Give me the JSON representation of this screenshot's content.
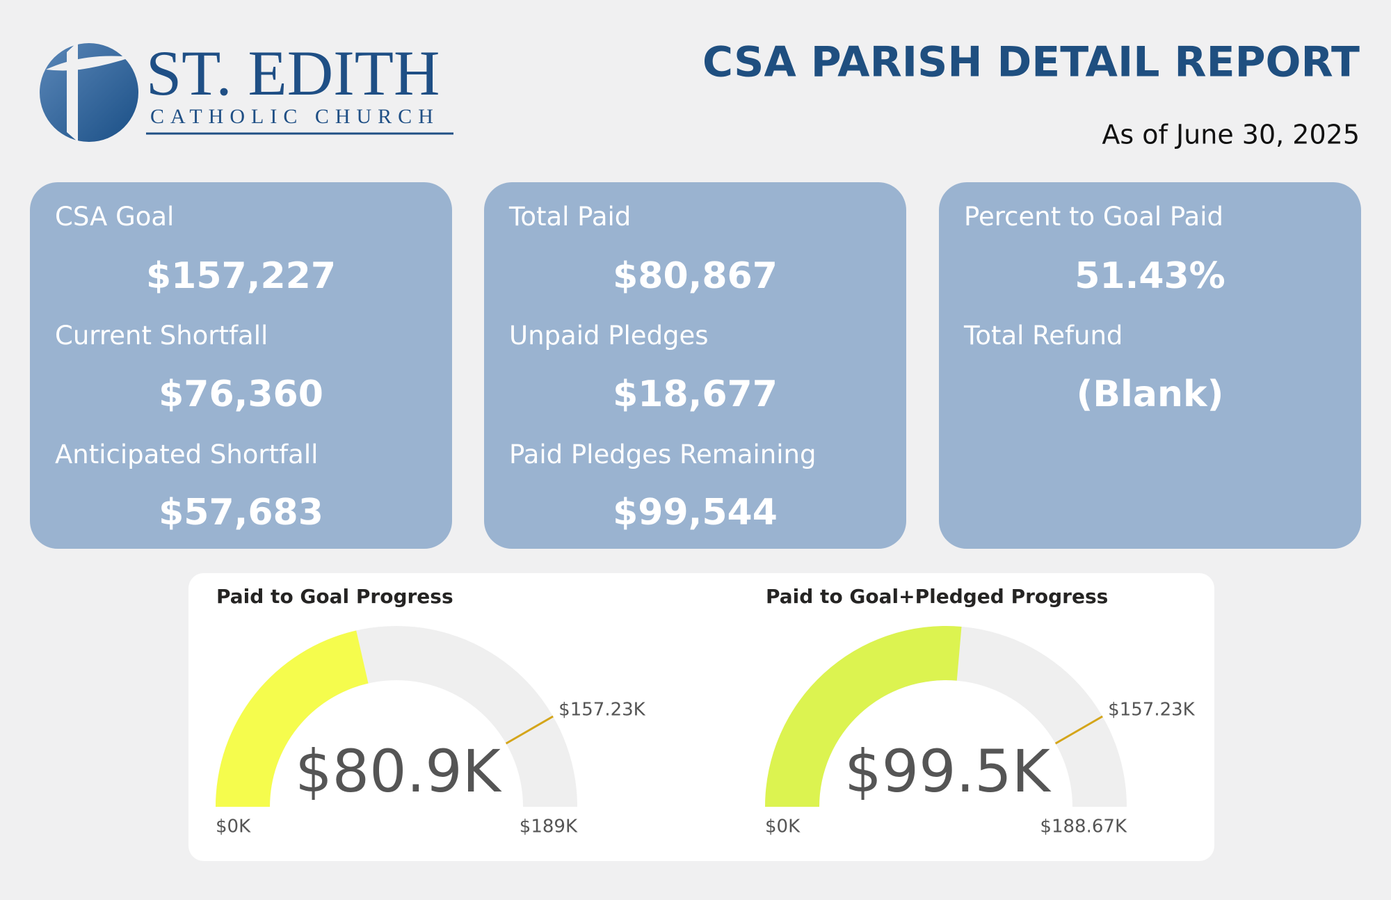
{
  "header": {
    "logo_name": "ST. EDITH",
    "logo_subtitle": "CATHOLIC CHURCH",
    "title": "CSA PARISH DETAIL REPORT",
    "date": "As of June 30, 2025"
  },
  "cards": [
    {
      "items": [
        {
          "label": "CSA Goal",
          "value": "$157,227"
        },
        {
          "label": "Current Shortfall",
          "value": "$76,360"
        },
        {
          "label": "Anticipated Shortfall",
          "value": "$57,683"
        }
      ]
    },
    {
      "items": [
        {
          "label": "Total Paid",
          "value": "$80,867"
        },
        {
          "label": "Unpaid Pledges",
          "value": "$18,677"
        },
        {
          "label": "Paid Pledges Remaining",
          "value": "$99,544"
        }
      ]
    },
    {
      "items": [
        {
          "label": "Percent to Goal Paid",
          "value": "51.43%"
        },
        {
          "label": "Total Refund",
          "value": "(Blank)"
        }
      ]
    }
  ],
  "chart_data": [
    {
      "type": "gauge",
      "title": "Paid to Goal Progress",
      "value": 80867,
      "value_label": "$80.9K",
      "target": 157227,
      "target_label": "$157.23K",
      "ylim": [
        0,
        188672
      ],
      "yticks": [
        {
          "value": 0,
          "label": "$0K"
        },
        {
          "value": 188672,
          "label": "$189K"
        }
      ],
      "color": "#f5fc4d",
      "track_color": "#efefef",
      "target_color": "#d4a51a"
    },
    {
      "type": "gauge",
      "title": "Paid to Goal+Pledged Progress",
      "value": 99544,
      "value_label": "$99.5K",
      "target": 157227,
      "target_label": "$157.23K",
      "ylim": [
        0,
        188672
      ],
      "yticks": [
        {
          "value": 0,
          "label": "$0K"
        },
        {
          "value": 188672,
          "label": "$188.67K"
        }
      ],
      "color": "#dcf350",
      "track_color": "#efefef",
      "target_color": "#d4a51a"
    }
  ]
}
